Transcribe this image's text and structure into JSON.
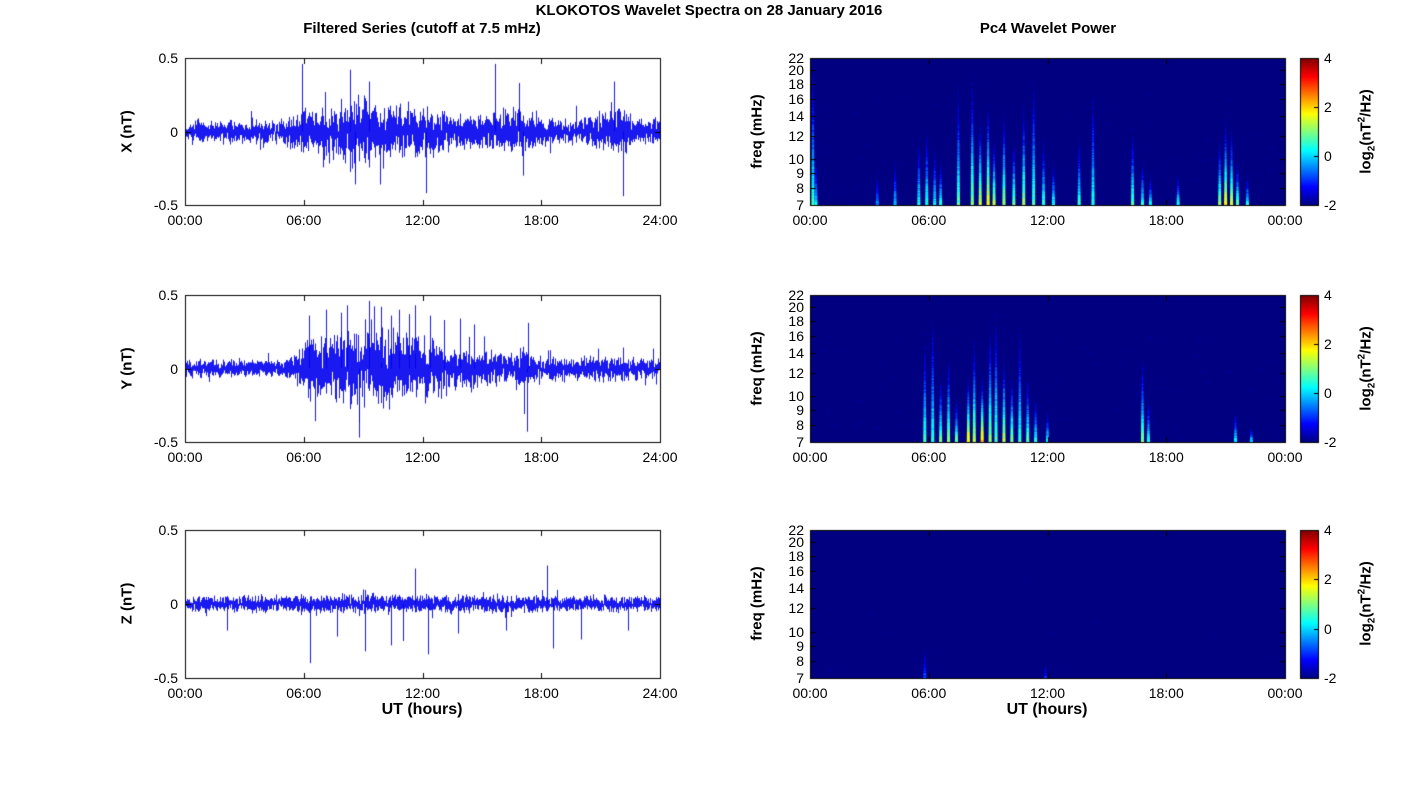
{
  "figure": {
    "title": "KLOKOTOS Wavelet Spectra on 28 January 2016",
    "left_title": "Filtered Series (cutoff at 7.5 mHz)",
    "right_title": "Pc4 Wavelet Power"
  },
  "labels": {
    "cbar": {
      "pre": "log",
      "sub": "2",
      "mid": "(nT",
      "sup": "2",
      "post": "/Hz)"
    }
  },
  "axes": {
    "time_ticks_left": [
      "00:00",
      "06:00",
      "12:00",
      "18:00",
      "24:00"
    ],
    "time_ticks_right": [
      "00:00",
      "06:00",
      "12:00",
      "18:00",
      "00:00"
    ],
    "time_tick_values": [
      0,
      6,
      12,
      18,
      24
    ],
    "amp_ticks": [
      "0.5",
      "0",
      "-0.5"
    ],
    "amp_tick_values": [
      0.5,
      0,
      -0.5
    ],
    "freq_ticks": [
      "22",
      "20",
      "18",
      "16",
      "14",
      "12",
      "10",
      "9",
      "8",
      "7"
    ],
    "freq_tick_values": [
      22,
      20,
      18,
      16,
      14,
      12,
      10,
      9,
      8,
      7
    ],
    "cbar_ticks": [
      "4",
      "2",
      "0",
      "-2"
    ],
    "cbar_tick_values": [
      4,
      2,
      0,
      -2
    ]
  },
  "chart_data": [
    {
      "type": "line",
      "panel": "X",
      "title": "Filtered Series (cutoff at 7.5 mHz)",
      "ylabel": "X (nT)",
      "xlabel": "",
      "xlim_hours": [
        0,
        24
      ],
      "ylim": [
        -0.5,
        0.5
      ],
      "xtick_labels": [
        "00:00",
        "06:00",
        "12:00",
        "18:00",
        "24:00"
      ],
      "ytick_labels": [
        "0.5",
        "0",
        "-0.5"
      ],
      "color": "#0000ee",
      "seed": 11,
      "envelope": [
        [
          0,
          0.065
        ],
        [
          4.8,
          0.07
        ],
        [
          5.6,
          0.11
        ],
        [
          6.2,
          0.13
        ],
        [
          7,
          0.15
        ],
        [
          8,
          0.19
        ],
        [
          8.8,
          0.21
        ],
        [
          9.5,
          0.18
        ],
        [
          10.5,
          0.16
        ],
        [
          11.5,
          0.15
        ],
        [
          12.5,
          0.13
        ],
        [
          13.5,
          0.11
        ],
        [
          14.5,
          0.1
        ],
        [
          15.5,
          0.11
        ],
        [
          16.2,
          0.14
        ],
        [
          17,
          0.15
        ],
        [
          17.6,
          0.11
        ],
        [
          18.2,
          0.08
        ],
        [
          19.5,
          0.075
        ],
        [
          20.5,
          0.09
        ],
        [
          21.2,
          0.13
        ],
        [
          21.8,
          0.16
        ],
        [
          22.3,
          0.13
        ],
        [
          23,
          0.09
        ],
        [
          24,
          0.075
        ]
      ],
      "spikes": [
        [
          5.9,
          0.46
        ],
        [
          8.35,
          0.42
        ],
        [
          8.6,
          -0.36
        ],
        [
          9.3,
          0.34
        ],
        [
          12.2,
          -0.42
        ],
        [
          15.65,
          0.46
        ],
        [
          16.9,
          0.33
        ],
        [
          17.1,
          -0.3
        ],
        [
          21.7,
          0.34
        ],
        [
          22.15,
          -0.44
        ]
      ]
    },
    {
      "type": "line",
      "panel": "Y",
      "title": "",
      "ylabel": "Y (nT)",
      "xlabel": "",
      "xlim_hours": [
        0,
        24
      ],
      "ylim": [
        -0.5,
        0.5
      ],
      "xtick_labels": [
        "00:00",
        "06:00",
        "12:00",
        "18:00",
        "24:00"
      ],
      "ytick_labels": [
        "0.5",
        "0",
        "-0.5"
      ],
      "color": "#0000ee",
      "seed": 22,
      "envelope": [
        [
          0,
          0.05
        ],
        [
          4.5,
          0.055
        ],
        [
          5.5,
          0.08
        ],
        [
          6,
          0.15
        ],
        [
          6.5,
          0.21
        ],
        [
          7.5,
          0.21
        ],
        [
          8.5,
          0.24
        ],
        [
          9.5,
          0.24
        ],
        [
          10.5,
          0.21
        ],
        [
          11.5,
          0.19
        ],
        [
          12.5,
          0.16
        ],
        [
          13.5,
          0.13
        ],
        [
          14.5,
          0.11
        ],
        [
          15.5,
          0.095
        ],
        [
          16.5,
          0.09
        ],
        [
          17.2,
          0.13
        ],
        [
          17.5,
          0.09
        ],
        [
          18.5,
          0.07
        ],
        [
          20,
          0.065
        ],
        [
          21.5,
          0.075
        ],
        [
          23,
          0.065
        ],
        [
          24,
          0.06
        ]
      ],
      "spikes": [
        [
          6.25,
          0.36
        ],
        [
          7.1,
          0.4
        ],
        [
          7.9,
          0.38
        ],
        [
          8.2,
          0.43
        ],
        [
          8.8,
          -0.37
        ],
        [
          9.3,
          0.46
        ],
        [
          9.9,
          0.42
        ],
        [
          10.4,
          0.36
        ],
        [
          10.8,
          0.4
        ],
        [
          11.3,
          0.37
        ],
        [
          11.6,
          0.43
        ],
        [
          12.4,
          0.36
        ],
        [
          13.1,
          0.33
        ],
        [
          13.9,
          0.34
        ],
        [
          14.6,
          0.3
        ],
        [
          17.3,
          -0.43
        ],
        [
          17.35,
          0.31
        ]
      ]
    },
    {
      "type": "line",
      "panel": "Z",
      "title": "",
      "ylabel": "Z (nT)",
      "xlabel": "UT (hours)",
      "xlim_hours": [
        0,
        24
      ],
      "ylim": [
        -0.5,
        0.5
      ],
      "xtick_labels": [
        "00:00",
        "06:00",
        "12:00",
        "18:00",
        "24:00"
      ],
      "ytick_labels": [
        "0.5",
        "0",
        "-0.5"
      ],
      "color": "#0000ee",
      "seed": 33,
      "envelope": [
        [
          0,
          0.045
        ],
        [
          3,
          0.05
        ],
        [
          6,
          0.05
        ],
        [
          9,
          0.055
        ],
        [
          12,
          0.055
        ],
        [
          15,
          0.05
        ],
        [
          18,
          0.05
        ],
        [
          21,
          0.048
        ],
        [
          24,
          0.045
        ]
      ],
      "spikes": [
        [
          2.1,
          -0.18
        ],
        [
          6.3,
          -0.4
        ],
        [
          7.7,
          -0.22
        ],
        [
          9.1,
          -0.32
        ],
        [
          10.4,
          -0.28
        ],
        [
          11.0,
          -0.25
        ],
        [
          11.6,
          0.24
        ],
        [
          12.3,
          -0.34
        ],
        [
          13.8,
          -0.2
        ],
        [
          16.2,
          -0.18
        ],
        [
          18.3,
          0.26
        ],
        [
          18.6,
          -0.3
        ],
        [
          20.0,
          -0.24
        ],
        [
          22.4,
          -0.18
        ]
      ]
    },
    {
      "type": "heatmap",
      "panel": "X",
      "title": "Pc4 Wavelet Power",
      "ylabel": "freq (mHz)",
      "xlabel": "",
      "xlim_hours": [
        0,
        24
      ],
      "flim": [
        7,
        22
      ],
      "yscale": "log",
      "clim": [
        -2,
        4
      ],
      "background_value": -2,
      "colorbar_label": "log2(nT^2/Hz)",
      "colorbar_ticks": [
        "4",
        "2",
        "0",
        "-2"
      ],
      "xtick_labels": [
        "00:00",
        "06:00",
        "12:00",
        "18:00",
        "00:00"
      ],
      "ytick_labels": [
        "22",
        "20",
        "18",
        "16",
        "14",
        "12",
        "10",
        "9",
        "8",
        "7"
      ],
      "events": [
        [
          0.15,
          22,
          0.6
        ],
        [
          0.3,
          10,
          0.3
        ],
        [
          3.4,
          9,
          -0.4
        ],
        [
          4.3,
          10,
          -0.1
        ],
        [
          5.5,
          12,
          0.4
        ],
        [
          5.9,
          13,
          0.5
        ],
        [
          6.3,
          11,
          0.3
        ],
        [
          6.6,
          10,
          0.5
        ],
        [
          7.5,
          18,
          0.8
        ],
        [
          8.2,
          20,
          1.1
        ],
        [
          8.6,
          14,
          1.5
        ],
        [
          9.0,
          16,
          1.8
        ],
        [
          9.3,
          12,
          1.4
        ],
        [
          9.8,
          15,
          1.2
        ],
        [
          10.3,
          12,
          1.0
        ],
        [
          10.8,
          16,
          1.2
        ],
        [
          11.3,
          20,
          0.7
        ],
        [
          11.8,
          12,
          0.6
        ],
        [
          12.3,
          10,
          0.4
        ],
        [
          13.6,
          12,
          0.6
        ],
        [
          14.3,
          18,
          0.5
        ],
        [
          16.3,
          13,
          0.8
        ],
        [
          16.8,
          10,
          0.6
        ],
        [
          17.2,
          9,
          0.4
        ],
        [
          18.6,
          9,
          0.5
        ],
        [
          20.7,
          12,
          1.2
        ],
        [
          21.0,
          14,
          1.8
        ],
        [
          21.3,
          13,
          1.6
        ],
        [
          21.6,
          10,
          1.0
        ],
        [
          22.1,
          9,
          0.5
        ]
      ]
    },
    {
      "type": "heatmap",
      "panel": "Y",
      "title": "",
      "ylabel": "freq (mHz)",
      "xlabel": "",
      "xlim_hours": [
        0,
        24
      ],
      "flim": [
        7,
        22
      ],
      "yscale": "log",
      "clim": [
        -2,
        4
      ],
      "background_value": -2,
      "colorbar_label": "log2(nT^2/Hz)",
      "colorbar_ticks": [
        "4",
        "2",
        "0",
        "-2"
      ],
      "xtick_labels": [
        "00:00",
        "06:00",
        "12:00",
        "18:00",
        "00:00"
      ],
      "ytick_labels": [
        "22",
        "20",
        "18",
        "16",
        "14",
        "12",
        "10",
        "9",
        "8",
        "7"
      ],
      "events": [
        [
          5.8,
          16,
          0.8
        ],
        [
          6.2,
          20,
          0.5
        ],
        [
          6.6,
          12,
          1.0
        ],
        [
          7.0,
          14,
          1.2
        ],
        [
          7.4,
          10,
          1.0
        ],
        [
          8.0,
          12,
          2.0
        ],
        [
          8.3,
          16,
          1.4
        ],
        [
          8.7,
          12,
          2.2
        ],
        [
          9.1,
          18,
          1.2
        ],
        [
          9.4,
          20,
          0.8
        ],
        [
          9.8,
          14,
          1.5
        ],
        [
          10.2,
          12,
          1.2
        ],
        [
          10.6,
          18,
          0.6
        ],
        [
          11.0,
          12,
          0.8
        ],
        [
          11.4,
          10,
          0.6
        ],
        [
          12.0,
          9,
          0.4
        ],
        [
          16.8,
          14,
          1.0
        ],
        [
          17.1,
          10,
          0.6
        ],
        [
          21.5,
          9,
          0.4
        ],
        [
          22.3,
          8,
          0.3
        ]
      ]
    },
    {
      "type": "heatmap",
      "panel": "Z",
      "title": "",
      "ylabel": "freq (mHz)",
      "xlabel": "UT (hours)",
      "xlim_hours": [
        0,
        24
      ],
      "flim": [
        7,
        22
      ],
      "yscale": "log",
      "clim": [
        -2,
        4
      ],
      "background_value": -2,
      "colorbar_label": "log2(nT^2/Hz)",
      "colorbar_ticks": [
        "4",
        "2",
        "0",
        "-2"
      ],
      "xtick_labels": [
        "00:00",
        "06:00",
        "12:00",
        "18:00",
        "00:00"
      ],
      "ytick_labels": [
        "22",
        "20",
        "18",
        "16",
        "14",
        "12",
        "10",
        "9",
        "8",
        "7"
      ],
      "events": [
        [
          5.8,
          9,
          -0.8
        ],
        [
          11.9,
          8,
          -1.0
        ]
      ]
    }
  ]
}
